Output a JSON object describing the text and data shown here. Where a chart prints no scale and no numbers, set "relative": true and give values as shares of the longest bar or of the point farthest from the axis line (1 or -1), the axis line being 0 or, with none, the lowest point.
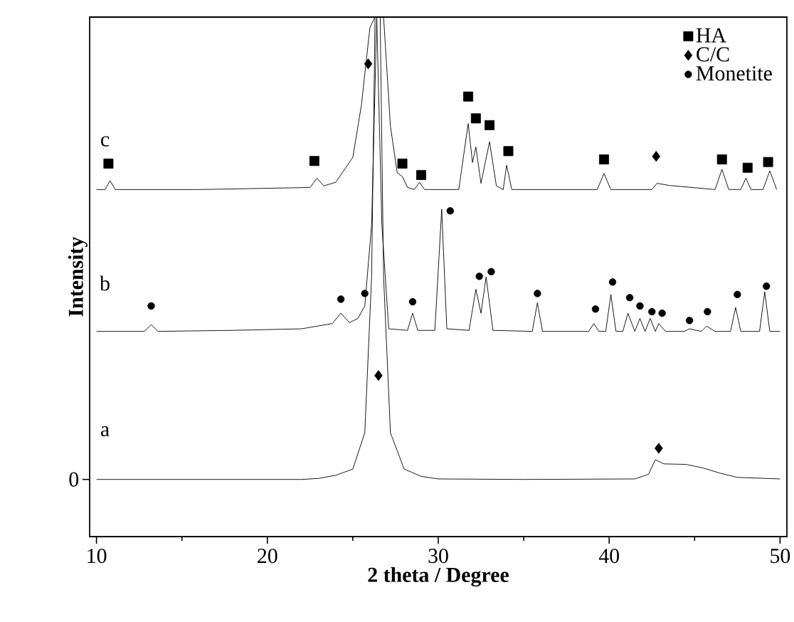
{
  "chart_data": {
    "type": "line",
    "relative": true,
    "xlabel": "2 theta / Degree",
    "ylabel": "Intensity",
    "xlim": [
      9.6,
      50.4
    ],
    "xticks": [
      10,
      20,
      30,
      40,
      50
    ],
    "legend": "top right",
    "annotations": [
      "0",
      "a",
      "b",
      "c"
    ],
    "series": [
      {
        "color": "#000000",
        "x": [
          10,
          14,
          18,
          22,
          23,
          24,
          25,
          25.7,
          26.1,
          26.3,
          26.6,
          26.8,
          27.2,
          28,
          29,
          30,
          35,
          41.5,
          42.3,
          42.7,
          43.2,
          44.5,
          45.5,
          46.5,
          47.5,
          50
        ],
        "values": [
          0.11,
          0.11,
          0.11,
          0.11,
          0.112,
          0.118,
          0.13,
          0.2,
          0.5,
          1,
          1,
          0.5,
          0.2,
          0.13,
          0.116,
          0.111,
          0.11,
          0.111,
          0.12,
          0.148,
          0.14,
          0.139,
          0.132,
          0.122,
          0.114,
          0.111
        ]
      },
      {
        "color": "#000000",
        "x": [
          10,
          12.8,
          13.2,
          13.6,
          18,
          22,
          23.8,
          24.3,
          24.8,
          25.3,
          25.7,
          26.1,
          26.4,
          26.7,
          27.1,
          28.2,
          28.5,
          28.8,
          29.8,
          30.2,
          30.5,
          31.8,
          32.2,
          32.5,
          32.8,
          33.2,
          35.5,
          35.8,
          36.1,
          38.8,
          39.1,
          39.4,
          39.8,
          40.1,
          40.4,
          40.8,
          41.1,
          41.5,
          41.8,
          42.1,
          42.4,
          42.7,
          42.9,
          43.3,
          44.4,
          44.7,
          45.4,
          45.7,
          46.2,
          47.1,
          47.4,
          47.7,
          48.8,
          49.1,
          49.4,
          50
        ],
        "values": [
          0.395,
          0.395,
          0.408,
          0.395,
          0.397,
          0.4,
          0.41,
          0.43,
          0.412,
          0.42,
          0.444,
          0.6,
          1,
          0.6,
          0.4,
          0.397,
          0.43,
          0.397,
          0.397,
          0.63,
          0.4,
          0.397,
          0.476,
          0.43,
          0.5,
          0.397,
          0.395,
          0.45,
          0.395,
          0.395,
          0.41,
          0.395,
          0.395,
          0.466,
          0.395,
          0.395,
          0.43,
          0.395,
          0.42,
          0.395,
          0.42,
          0.395,
          0.41,
          0.395,
          0.395,
          0.4,
          0.395,
          0.405,
          0.395,
          0.395,
          0.441,
          0.395,
          0.395,
          0.471,
          0.395,
          0.395
        ]
      },
      {
        "color": "#000000",
        "x": [
          10,
          10.5,
          10.8,
          11.1,
          16,
          22.5,
          22.9,
          23.3,
          24,
          25,
          25.5,
          26,
          26.3,
          26.8,
          27.2,
          27.6,
          27.9,
          28.2,
          28.6,
          28.9,
          29.2,
          31.2,
          31.75,
          32.0,
          32.2,
          32.5,
          33.0,
          33.4,
          33.8,
          34.0,
          34.3,
          39.3,
          39.7,
          40.1,
          42.5,
          42.8,
          43.5,
          46.2,
          46.6,
          47,
          47.7,
          48.0,
          48.3,
          49.0,
          49.4,
          49.8
        ],
        "values": [
          0.668,
          0.668,
          0.685,
          0.668,
          0.668,
          0.672,
          0.69,
          0.675,
          0.682,
          0.73,
          0.83,
          0.98,
          1,
          1,
          0.79,
          0.7,
          0.693,
          0.672,
          0.668,
          0.682,
          0.668,
          0.668,
          0.795,
          0.72,
          0.75,
          0.68,
          0.76,
          0.675,
          0.668,
          0.715,
          0.668,
          0.668,
          0.699,
          0.668,
          0.668,
          0.68,
          0.676,
          0.668,
          0.707,
          0.668,
          0.668,
          0.69,
          0.668,
          0.668,
          0.704,
          0.668
        ]
      },
      {
        "name": "HA",
        "type": "scatter",
        "marker": "square",
        "color": "#000000",
        "x": [
          10.7,
          22.75,
          27.9,
          29.0,
          31.75,
          32.2,
          33.0,
          34.1,
          39.7,
          46.6,
          48.1,
          49.3
        ],
        "values": [
          0.718,
          0.723,
          0.718,
          0.696,
          0.847,
          0.805,
          0.792,
          0.742,
          0.726,
          0.726,
          0.71,
          0.721
        ]
      },
      {
        "name": "C/C",
        "type": "scatter",
        "marker": "diamond",
        "color": "#000000",
        "x": [
          25.9,
          42.75,
          26.5,
          42.9
        ],
        "values": [
          0.91,
          0.732,
          0.31,
          0.17
        ]
      },
      {
        "name": "Monetite",
        "type": "scatter",
        "marker": "circle",
        "color": "#000000",
        "x": [
          13.2,
          24.3,
          25.7,
          28.5,
          30.7,
          32.4,
          33.1,
          35.8,
          39.2,
          40.2,
          41.2,
          41.8,
          42.5,
          43.1,
          44.7,
          45.75,
          47.5,
          49.2
        ],
        "values": [
          0.444,
          0.457,
          0.468,
          0.452,
          0.627,
          0.501,
          0.51,
          0.468,
          0.438,
          0.49,
          0.46,
          0.444,
          0.433,
          0.43,
          0.416,
          0.433,
          0.466,
          0.482
        ]
      }
    ]
  }
}
